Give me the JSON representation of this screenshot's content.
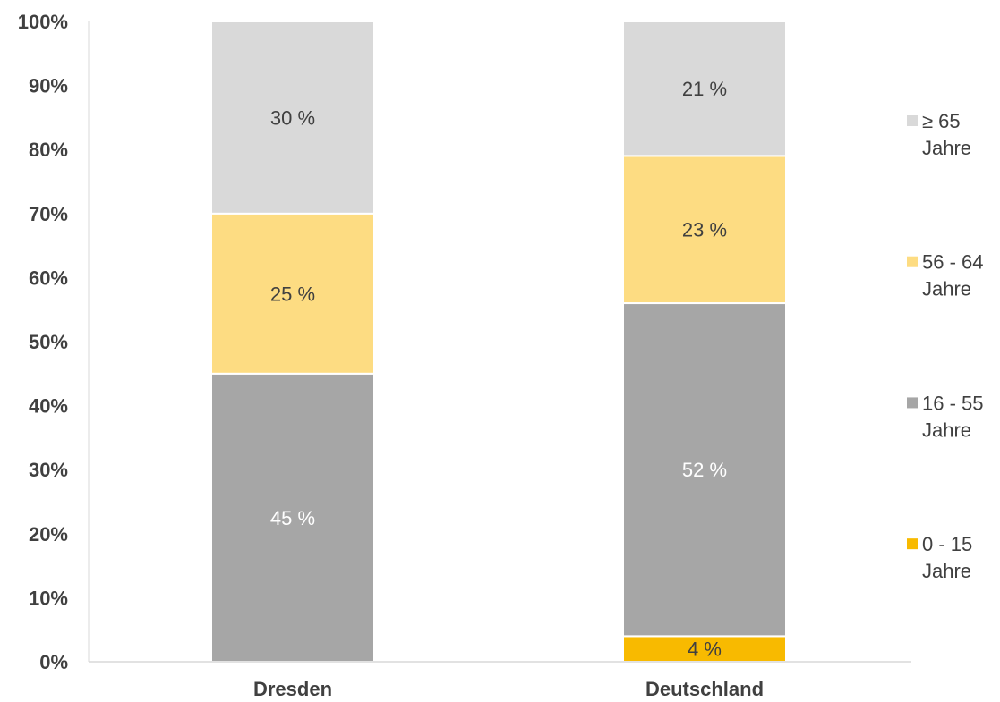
{
  "chart_data": {
    "type": "bar",
    "stacked": true,
    "percent": true,
    "categories": [
      "Dresden",
      "Deutschland"
    ],
    "series": [
      {
        "name_lines": [
          "0 - 15",
          "Jahre"
        ],
        "values": [
          0,
          4
        ],
        "labels": [
          "",
          "4 %"
        ],
        "color": "#F8BA00",
        "label_color": "#404040"
      },
      {
        "name_lines": [
          "16 - 55",
          "Jahre"
        ],
        "values": [
          45,
          52
        ],
        "labels": [
          "45 %",
          "52 %"
        ],
        "color": "#A6A6A6",
        "label_color": "#FFFFFF"
      },
      {
        "name_lines": [
          "56 - 64",
          "Jahre"
        ],
        "values": [
          25,
          23
        ],
        "labels": [
          "25 %",
          "23 %"
        ],
        "color": "#FDDC82",
        "label_color": "#404040"
      },
      {
        "name_lines": [
          "≥ 65",
          "Jahre"
        ],
        "values": [
          30,
          21
        ],
        "labels": [
          "30 %",
          "21 %"
        ],
        "color": "#D9D9D9",
        "label_color": "#404040"
      }
    ],
    "yticks": [
      "0%",
      "10%",
      "20%",
      "30%",
      "40%",
      "50%",
      "60%",
      "70%",
      "80%",
      "90%",
      "100%"
    ],
    "ylim": [
      0,
      100
    ],
    "grid": false,
    "legend_position": "right"
  }
}
